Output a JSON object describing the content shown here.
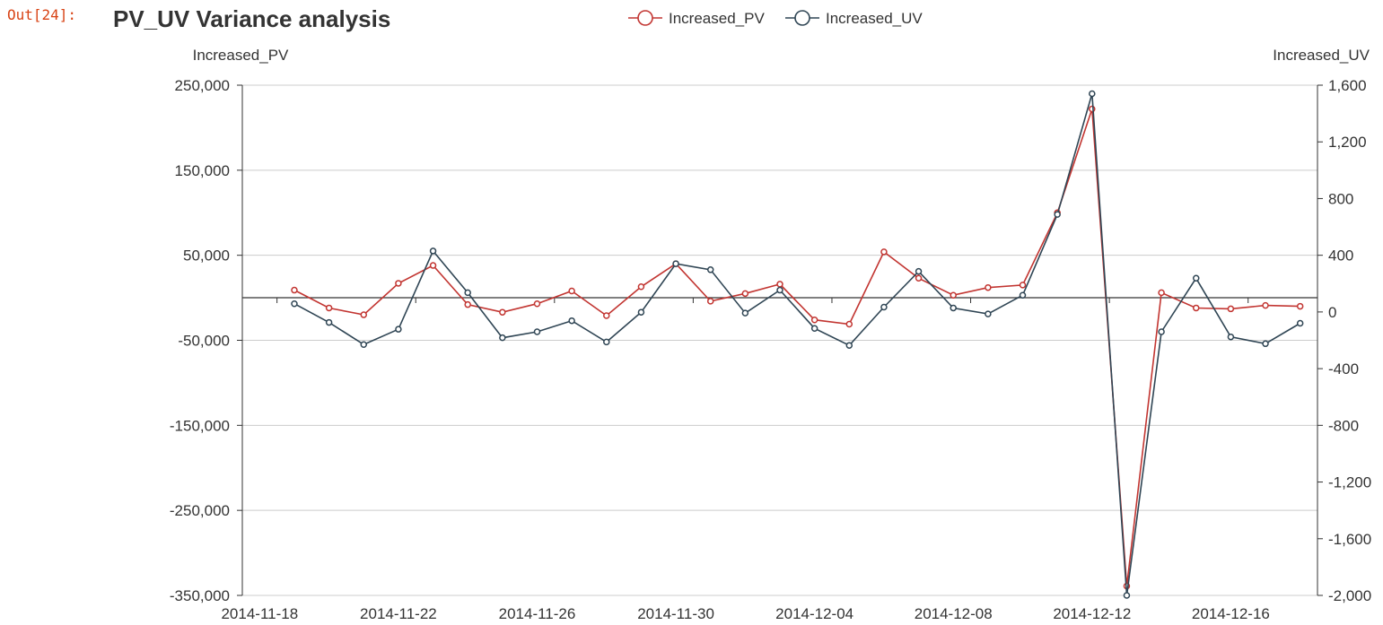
{
  "cell": {
    "prompt": "Out[24]:"
  },
  "chart_data": {
    "type": "line",
    "title": "PV_UV Variance analysis",
    "legend_position": "top-center",
    "grid": true,
    "colors": {
      "pv": "#c23531",
      "uv": "#2f4554",
      "grid": "#cccccc",
      "axis": "#333333"
    },
    "x_tick_labels": [
      "2014-11-18",
      "2014-11-22",
      "2014-11-26",
      "2014-11-30",
      "2014-12-04",
      "2014-12-08",
      "2014-12-12",
      "2014-12-16"
    ],
    "x": [
      "2014-11-19",
      "2014-11-20",
      "2014-11-21",
      "2014-11-22",
      "2014-11-23",
      "2014-11-24",
      "2014-11-25",
      "2014-11-26",
      "2014-11-27",
      "2014-11-28",
      "2014-11-29",
      "2014-11-30",
      "2014-12-01",
      "2014-12-02",
      "2014-12-03",
      "2014-12-04",
      "2014-12-05",
      "2014-12-06",
      "2014-12-07",
      "2014-12-08",
      "2014-12-09",
      "2014-12-10",
      "2014-12-11",
      "2014-12-12",
      "2014-12-13",
      "2014-12-14",
      "2014-12-15",
      "2014-12-16",
      "2014-12-17",
      "2014-12-18"
    ],
    "y_left": {
      "label": "Increased_PV",
      "ylim": [
        -350000,
        250000
      ],
      "ticks": [
        250000,
        150000,
        50000,
        -50000,
        -150000,
        -250000,
        -350000
      ],
      "tick_labels": [
        "250,000",
        "150,000",
        "50,000",
        "-50,000",
        "-150,000",
        "-250,000",
        "-350,000"
      ]
    },
    "y_right": {
      "label": "Increased_UV",
      "ylim": [
        -2000,
        1600
      ],
      "ticks": [
        1600,
        1200,
        800,
        400,
        0,
        -400,
        -800,
        -1200,
        -1600,
        -2000
      ],
      "tick_labels": [
        "1,600",
        "1,200",
        "800",
        "400",
        "0",
        "-400",
        "-800",
        "-1,200",
        "-1,600",
        "-2,000"
      ]
    },
    "series": [
      {
        "name": "Increased_PV",
        "axis": "left",
        "values": [
          9000,
          -12000,
          -20000,
          17000,
          38000,
          -8000,
          -17000,
          -7000,
          8000,
          -21000,
          13000,
          40000,
          -4000,
          5000,
          16000,
          -26000,
          -31000,
          54000,
          23000,
          3000,
          12000,
          15000,
          100000,
          222000,
          -339000,
          6000,
          -12000,
          -13000,
          -9000,
          -10000
        ]
      },
      {
        "name": "Increased_UV",
        "axis": "left",
        "values": [
          -7000,
          -29000,
          -55000,
          -37000,
          55000,
          6000,
          -47000,
          -40000,
          -27000,
          -52000,
          -17000,
          40000,
          33000,
          -18000,
          9000,
          -36000,
          -56000,
          -11000,
          31000,
          -12000,
          -19000,
          3000,
          98000,
          240000,
          -350000,
          -40000,
          23000,
          -46000,
          -54000,
          -30000
        ]
      }
    ]
  }
}
